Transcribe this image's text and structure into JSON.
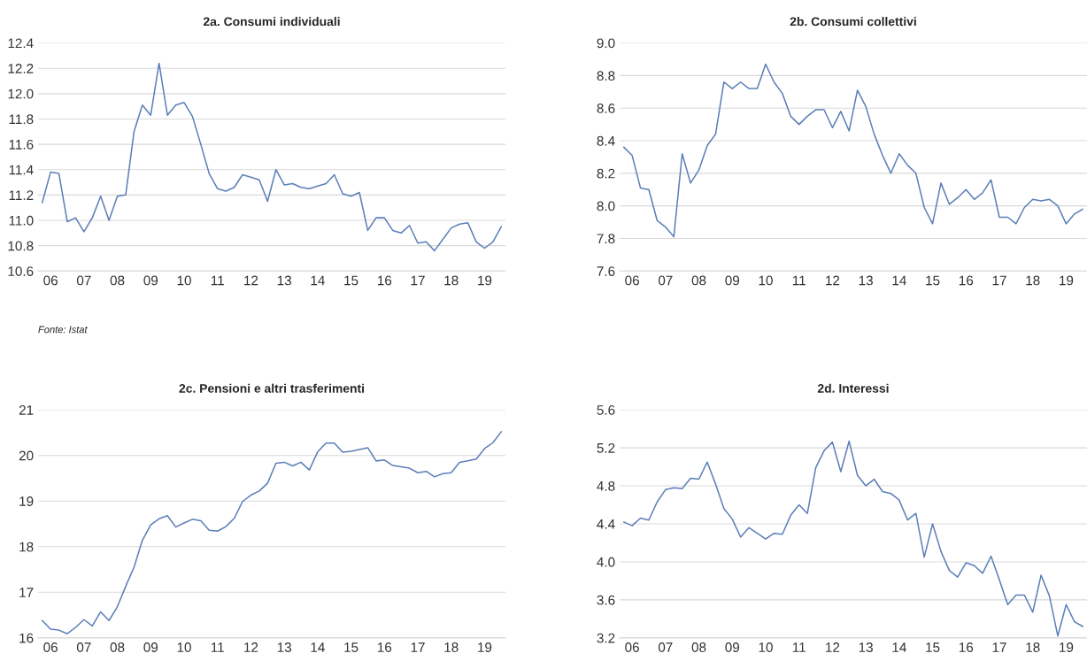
{
  "chart_data": [
    {
      "type": "line",
      "title": "2a. Consumi individuali",
      "categories": [
        null,
        "06",
        null,
        null,
        null,
        "07",
        null,
        null,
        null,
        "08",
        null,
        null,
        null,
        "09",
        null,
        null,
        null,
        "10",
        null,
        null,
        null,
        "11",
        null,
        null,
        null,
        "12",
        null,
        null,
        null,
        "13",
        null,
        null,
        null,
        "14",
        null,
        null,
        null,
        "15",
        null,
        null,
        null,
        "16",
        null,
        null,
        null,
        "17",
        null,
        null,
        null,
        "18",
        null,
        null,
        null,
        "19",
        null,
        null
      ],
      "series": [
        {
          "color": "#5b7fb8",
          "values": [
            11.14,
            11.38,
            11.37,
            10.99,
            11.02,
            10.91,
            11.02,
            11.19,
            11.0,
            11.19,
            11.2,
            11.7,
            11.91,
            11.83,
            12.24,
            11.83,
            11.91,
            11.93,
            11.82,
            11.6,
            11.37,
            11.25,
            11.23,
            11.26,
            11.36,
            11.34,
            11.32,
            11.15,
            11.4,
            11.28,
            11.29,
            11.26,
            11.25,
            11.27,
            11.29,
            11.36,
            11.21,
            11.19,
            11.22,
            10.92,
            11.02,
            11.02,
            10.92,
            10.9,
            10.96,
            10.82,
            10.83,
            10.76,
            10.85,
            10.94,
            10.97,
            10.98,
            10.83,
            10.78,
            10.83,
            10.95
          ]
        }
      ],
      "ylim": [
        10.6,
        12.4
      ],
      "yticks": [
        {
          "value": 10.6,
          "label": "10.6"
        },
        {
          "value": 10.8,
          "label": "10.8"
        },
        {
          "value": 11.0,
          "label": "11.0"
        },
        {
          "value": 11.2,
          "label": "11.2"
        },
        {
          "value": 11.4,
          "label": "11.4"
        },
        {
          "value": 11.6,
          "label": "11.6"
        },
        {
          "value": 11.8,
          "label": "11.8"
        },
        {
          "value": 12.0,
          "label": "12.0"
        },
        {
          "value": 12.2,
          "label": "12.2"
        },
        {
          "value": 12.4,
          "label": "12.4"
        }
      ],
      "grid": "y",
      "legend": false,
      "annotations": [
        "Fonte: Istat"
      ]
    },
    {
      "type": "line",
      "title": "2b. Consumi collettivi",
      "categories": [
        null,
        "06",
        null,
        null,
        null,
        "07",
        null,
        null,
        null,
        "08",
        null,
        null,
        null,
        "09",
        null,
        null,
        null,
        "10",
        null,
        null,
        null,
        "11",
        null,
        null,
        null,
        "12",
        null,
        null,
        null,
        "13",
        null,
        null,
        null,
        "14",
        null,
        null,
        null,
        "15",
        null,
        null,
        null,
        "16",
        null,
        null,
        null,
        "17",
        null,
        null,
        null,
        "18",
        null,
        null,
        null,
        "19",
        null,
        null
      ],
      "series": [
        {
          "color": "#5b7fb8",
          "values": [
            8.36,
            8.31,
            8.11,
            8.1,
            7.91,
            7.87,
            7.81,
            8.32,
            8.14,
            8.22,
            8.37,
            8.44,
            8.76,
            8.72,
            8.76,
            8.72,
            8.72,
            8.87,
            8.76,
            8.69,
            8.55,
            8.5,
            8.55,
            8.59,
            8.59,
            8.48,
            8.58,
            8.46,
            8.71,
            8.61,
            8.44,
            8.31,
            8.2,
            8.32,
            8.25,
            8.2,
            7.99,
            7.89,
            8.14,
            8.01,
            8.05,
            8.1,
            8.04,
            8.08,
            8.16,
            7.93,
            7.93,
            7.89,
            7.99,
            8.04,
            8.03,
            8.04,
            8.0,
            7.89,
            7.95,
            7.98
          ]
        }
      ],
      "ylim": [
        7.6,
        9.0
      ],
      "yticks": [
        {
          "value": 7.6,
          "label": "7.6"
        },
        {
          "value": 7.8,
          "label": "7.8"
        },
        {
          "value": 8.0,
          "label": "8.0"
        },
        {
          "value": 8.2,
          "label": "8.2"
        },
        {
          "value": 8.4,
          "label": "8.4"
        },
        {
          "value": 8.6,
          "label": "8.6"
        },
        {
          "value": 8.8,
          "label": "8.8"
        },
        {
          "value": 9.0,
          "label": "9.0"
        }
      ],
      "grid": "y",
      "legend": false
    },
    {
      "type": "line",
      "title": "2c. Pensioni e altri trasferimenti",
      "categories": [
        null,
        "06",
        null,
        null,
        null,
        "07",
        null,
        null,
        null,
        "08",
        null,
        null,
        null,
        "09",
        null,
        null,
        null,
        "10",
        null,
        null,
        null,
        "11",
        null,
        null,
        null,
        "12",
        null,
        null,
        null,
        "13",
        null,
        null,
        null,
        "14",
        null,
        null,
        null,
        "15",
        null,
        null,
        null,
        "16",
        null,
        null,
        null,
        "17",
        null,
        null,
        null,
        "18",
        null,
        null,
        null,
        "19",
        null,
        null
      ],
      "series": [
        {
          "color": "#5b7fb8",
          "values": [
            16.38,
            16.19,
            16.17,
            16.09,
            16.23,
            16.4,
            16.26,
            16.57,
            16.38,
            16.68,
            17.13,
            17.55,
            18.14,
            18.48,
            18.61,
            18.68,
            18.43,
            18.52,
            18.6,
            18.57,
            18.36,
            18.34,
            18.44,
            18.62,
            18.99,
            19.13,
            19.22,
            19.39,
            19.83,
            19.85,
            19.77,
            19.85,
            19.68,
            20.08,
            20.27,
            20.27,
            20.07,
            20.09,
            20.13,
            20.17,
            19.88,
            19.9,
            19.78,
            19.75,
            19.72,
            19.62,
            19.65,
            19.53,
            19.6,
            19.62,
            19.85,
            19.88,
            19.92,
            20.15,
            20.28,
            20.52
          ]
        }
      ],
      "ylim": [
        16,
        21
      ],
      "yticks": [
        16,
        17,
        18,
        19,
        20,
        21
      ],
      "grid": "y",
      "legend": false
    },
    {
      "type": "line",
      "title": "2d. Interessi",
      "categories": [
        null,
        "06",
        null,
        null,
        null,
        "07",
        null,
        null,
        null,
        "08",
        null,
        null,
        null,
        "09",
        null,
        null,
        null,
        "10",
        null,
        null,
        null,
        "11",
        null,
        null,
        null,
        "12",
        null,
        null,
        null,
        "13",
        null,
        null,
        null,
        "14",
        null,
        null,
        null,
        "15",
        null,
        null,
        null,
        "16",
        null,
        null,
        null,
        "17",
        null,
        null,
        null,
        "18",
        null,
        null,
        null,
        "19",
        null,
        null
      ],
      "series": [
        {
          "color": "#5b7fb8",
          "values": [
            4.42,
            4.38,
            4.46,
            4.44,
            4.63,
            4.76,
            4.78,
            4.77,
            4.88,
            4.87,
            5.05,
            4.82,
            4.56,
            4.45,
            4.26,
            4.36,
            4.3,
            4.24,
            4.3,
            4.29,
            4.49,
            4.6,
            4.51,
            4.99,
            5.17,
            5.26,
            4.95,
            5.27,
            4.91,
            4.8,
            4.87,
            4.74,
            4.72,
            4.65,
            4.44,
            4.51,
            4.05,
            4.4,
            4.11,
            3.91,
            3.84,
            3.99,
            3.96,
            3.88,
            4.06,
            3.81,
            3.55,
            3.65,
            3.65,
            3.47,
            3.86,
            3.64,
            3.22,
            3.55,
            3.37,
            3.32
          ]
        }
      ],
      "ylim": [
        3.2,
        5.6
      ],
      "yticks": [
        {
          "value": 3.2,
          "label": "3.2"
        },
        {
          "value": 3.6,
          "label": "3.6"
        },
        {
          "value": 4.0,
          "label": "4.0"
        },
        {
          "value": 4.4,
          "label": "4.4"
        },
        {
          "value": 4.8,
          "label": "4.8"
        },
        {
          "value": 5.2,
          "label": "5.2"
        },
        {
          "value": 5.6,
          "label": "5.6"
        }
      ],
      "grid": "y",
      "legend": false
    }
  ]
}
